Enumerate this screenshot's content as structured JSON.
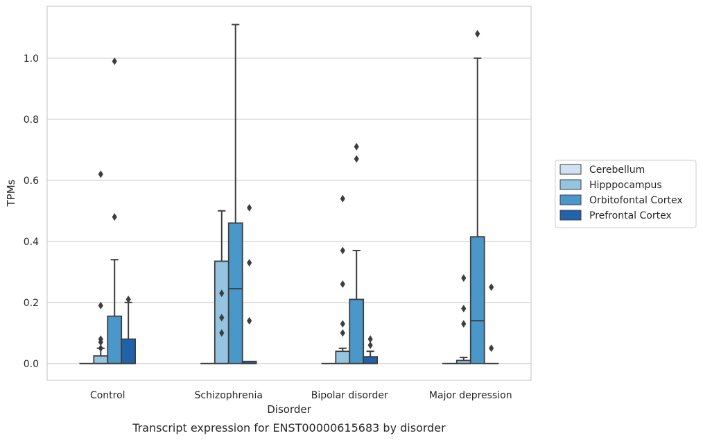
{
  "chart_data": {
    "type": "box",
    "caption": "Transcript expression for ENST00000615683 by disorder",
    "xlabel": "Disorder",
    "ylabel": "TPMs",
    "ylim": [
      -0.055,
      1.17
    ],
    "yticks": [
      "0.0",
      "0.2",
      "0.4",
      "0.6",
      "0.8",
      "1.0"
    ],
    "ytick_values": [
      0.0,
      0.2,
      0.4,
      0.6,
      0.8,
      1.0
    ],
    "grid": "horizontal",
    "legend_position": "right",
    "categories": [
      "Control",
      "Schizophrenia",
      "Bipolar disorder",
      "Major depression"
    ],
    "series": [
      {
        "name": "Cerebellum",
        "color": "#d0e1f2",
        "boxes": [
          {
            "whisker_low": 0,
            "q1": 0,
            "median": 0,
            "q3": 0,
            "whisker_high": 0,
            "outliers": []
          },
          {
            "whisker_low": 0,
            "q1": 0,
            "median": 0,
            "q3": 0,
            "whisker_high": 0,
            "outliers": []
          },
          {
            "whisker_low": 0,
            "q1": 0,
            "median": 0,
            "q3": 0,
            "whisker_high": 0,
            "outliers": []
          },
          {
            "whisker_low": 0,
            "q1": 0,
            "median": 0,
            "q3": 0,
            "whisker_high": 0,
            "outliers": []
          }
        ]
      },
      {
        "name": "Hipppocampus",
        "color": "#94c4df",
        "boxes": [
          {
            "whisker_low": 0,
            "q1": 0,
            "median": 0,
            "q3": 0.025,
            "whisker_high": 0.05,
            "outliers": [
              0.05,
              0.07,
              0.08,
              0.19,
              0.62
            ]
          },
          {
            "whisker_low": 0,
            "q1": 0,
            "median": 0,
            "q3": 0.335,
            "whisker_high": 0.5,
            "outliers": [
              0.1,
              0.15,
              0.23
            ]
          },
          {
            "whisker_low": 0,
            "q1": 0,
            "median": 0,
            "q3": 0.04,
            "whisker_high": 0.05,
            "outliers": [
              0.1,
              0.13,
              0.26,
              0.37,
              0.54
            ]
          },
          {
            "whisker_low": 0,
            "q1": 0,
            "median": 0,
            "q3": 0.01,
            "whisker_high": 0.02,
            "outliers": [
              0.13,
              0.18,
              0.28
            ]
          }
        ]
      },
      {
        "name": "Orbitofontal Cortex",
        "color": "#4a98c9",
        "boxes": [
          {
            "whisker_low": 0,
            "q1": 0,
            "median": 0,
            "q3": 0.155,
            "whisker_high": 0.34,
            "outliers": [
              0.48,
              0.99
            ]
          },
          {
            "whisker_low": 0,
            "q1": 0,
            "median": 0.245,
            "q3": 0.46,
            "whisker_high": 1.11,
            "outliers": []
          },
          {
            "whisker_low": 0,
            "q1": 0,
            "median": 0,
            "q3": 0.21,
            "whisker_high": 0.37,
            "outliers": [
              0.67,
              0.71
            ]
          },
          {
            "whisker_low": 0,
            "q1": 0,
            "median": 0.14,
            "q3": 0.415,
            "whisker_high": 1.0,
            "outliers": [
              1.08
            ]
          }
        ]
      },
      {
        "name": "Prefrontal Cortex",
        "color": "#2163aa",
        "boxes": [
          {
            "whisker_low": 0,
            "q1": 0,
            "median": 0,
            "q3": 0.08,
            "whisker_high": 0.2,
            "outliers": [
              0.21
            ]
          },
          {
            "whisker_low": 0,
            "q1": 0,
            "median": 0,
            "q3": 0.007,
            "whisker_high": 0.007,
            "outliers": [
              0.14,
              0.33,
              0.51
            ]
          },
          {
            "whisker_low": 0,
            "q1": 0,
            "median": 0,
            "q3": 0.022,
            "whisker_high": 0.04,
            "outliers": [
              0.06,
              0.08
            ]
          },
          {
            "whisker_low": 0,
            "q1": 0,
            "median": 0,
            "q3": 0,
            "whisker_high": 0,
            "outliers": [
              0.05,
              0.25
            ]
          }
        ]
      }
    ]
  }
}
